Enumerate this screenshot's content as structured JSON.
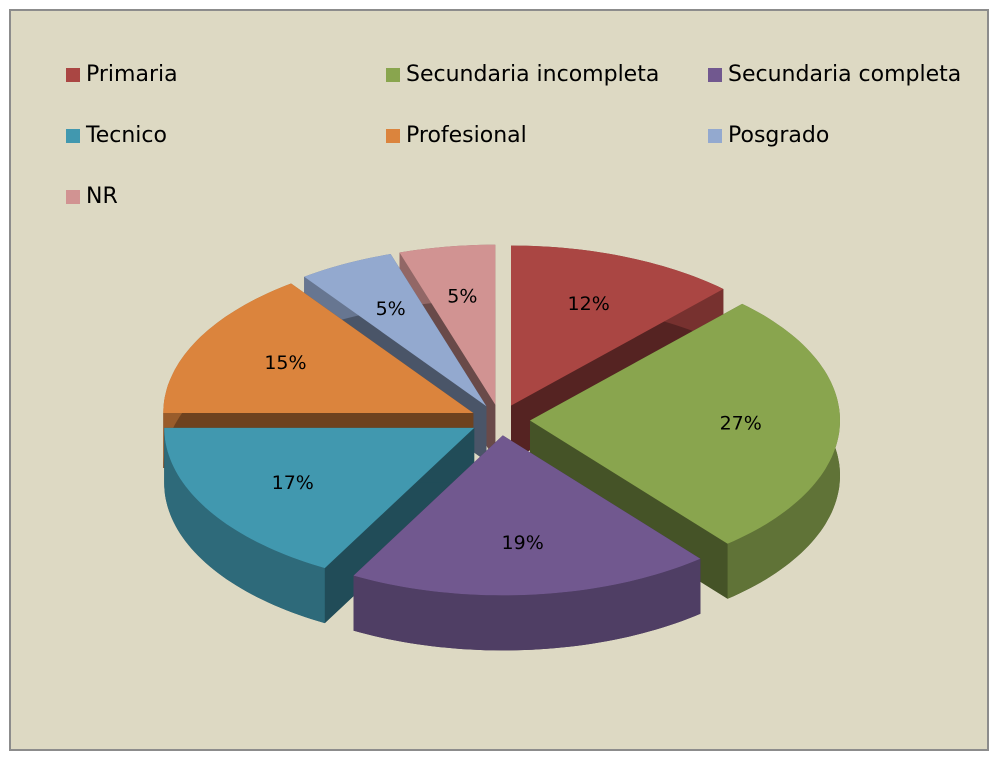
{
  "chart_data": {
    "type": "pie",
    "categories": [
      "Primaria",
      "Secundaria incompleta",
      "Secundaria completa",
      "Tecnico",
      "Profesional",
      "Posgrado",
      "NR"
    ],
    "values": [
      12,
      27,
      19,
      17,
      15,
      5,
      5
    ],
    "value_labels": [
      "12%",
      "27%",
      "19%",
      "17%",
      "15%",
      "5%",
      "5%"
    ],
    "colors": [
      "#AA4643",
      "#89A54E",
      "#71588F",
      "#4198AF",
      "#DB843D",
      "#93A9CF",
      "#D19392"
    ],
    "legend": "top"
  }
}
